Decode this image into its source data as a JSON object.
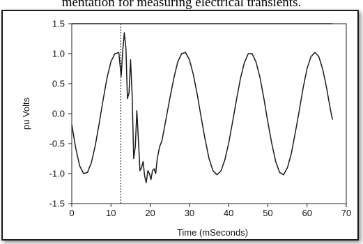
{
  "caption": "mentation for measuring electrical transients.",
  "chart_data": {
    "type": "line",
    "title": "",
    "xlabel": "Time (mSeconds)",
    "ylabel": "pu Volts",
    "xlim": [
      0,
      70
    ],
    "ylim": [
      -1.5,
      1.5
    ],
    "xticks": [
      0,
      10,
      20,
      30,
      40,
      50,
      60,
      70
    ],
    "yticks": [
      -1.5,
      -1.0,
      -0.5,
      0.0,
      0.5,
      1.0,
      1.5
    ],
    "xtick_labels": [
      "0",
      "10",
      "20",
      "30",
      "40",
      "50",
      "60",
      "70"
    ],
    "ytick_labels": [
      "-1.5",
      "-1.0",
      "-0.5",
      "0.0",
      "0.5",
      "1.0",
      "1.5"
    ],
    "grid": false,
    "reference_line": {
      "orientation": "horizontal",
      "y": 1.5
    },
    "marker_line": {
      "orientation": "vertical",
      "x": 12.5,
      "style": "dotted"
    },
    "series": [
      {
        "x": [
          0,
          1,
          2,
          3,
          4,
          5,
          6,
          7,
          8,
          9,
          10,
          11,
          12,
          12.6,
          13.0,
          13.4,
          13.8,
          14.2,
          14.6,
          15.0,
          15.4,
          15.8,
          16.2,
          16.6,
          17.0,
          17.4,
          17.8,
          18.2,
          18.6,
          19.0,
          19.4,
          19.8,
          20.2,
          20.6,
          21.0,
          21.4,
          21.8,
          22.4,
          23,
          24,
          25,
          26,
          27,
          28,
          29,
          30,
          31,
          32,
          33,
          34,
          35,
          36,
          37,
          38,
          39,
          40,
          41,
          42,
          43,
          44,
          45,
          46,
          47,
          48,
          49,
          50,
          51,
          52,
          53,
          54,
          55,
          56,
          57,
          58,
          59,
          60,
          61,
          62,
          63,
          64,
          65,
          66,
          66.5
        ],
        "y": [
          -0.18,
          -0.57,
          -0.87,
          -1.0,
          -0.98,
          -0.82,
          -0.53,
          -0.16,
          0.23,
          0.6,
          0.87,
          1.0,
          1.02,
          0.62,
          1.05,
          1.35,
          1.1,
          0.25,
          0.35,
          0.9,
          0.3,
          -0.75,
          -0.55,
          0.05,
          -0.45,
          -0.95,
          -0.9,
          -0.8,
          -1.05,
          -1.15,
          -0.95,
          -1.0,
          -1.1,
          -0.95,
          -0.92,
          -1.0,
          -0.75,
          -0.55,
          -0.45,
          -0.1,
          0.25,
          0.58,
          0.86,
          1.0,
          1.02,
          0.9,
          0.65,
          0.32,
          -0.06,
          -0.43,
          -0.75,
          -0.95,
          -1.02,
          -0.96,
          -0.78,
          -0.5,
          -0.14,
          0.23,
          0.58,
          0.85,
          1.0,
          1.0,
          0.86,
          0.6,
          0.25,
          -0.14,
          -0.5,
          -0.8,
          -0.98,
          -1.02,
          -0.9,
          -0.66,
          -0.32,
          0.05,
          0.43,
          0.75,
          0.95,
          1.02,
          0.95,
          0.74,
          0.42,
          0.05,
          -0.1
        ]
      }
    ]
  }
}
